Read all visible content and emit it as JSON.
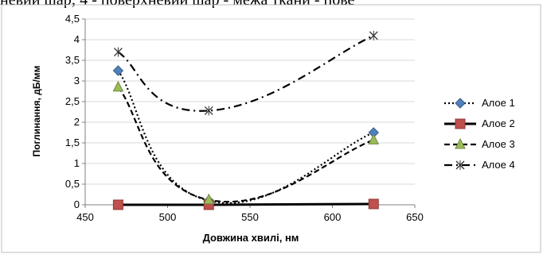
{
  "top_text": "невий шар; 4 - поверхневий шар - межа ткани - пове",
  "chart_data": {
    "type": "line",
    "xlabel": "Довжина хвилі, нм",
    "ylabel": "Поглинання, дБ/мм",
    "xlim": [
      450,
      650
    ],
    "ylim": [
      0,
      4.5
    ],
    "x_ticks": [
      "450",
      "500",
      "550",
      "600",
      "650"
    ],
    "y_ticks": [
      "0",
      "0,5",
      "1",
      "1,5",
      "2",
      "2,5",
      "3",
      "3,5",
      "4",
      "4,5"
    ],
    "grid": "horizontal",
    "legend_position": "right",
    "series": [
      {
        "name": "Алое 1",
        "x": [
          470,
          525,
          625
        ],
        "y": [
          3.25,
          0.1,
          1.75
        ],
        "color": "#4f81bd",
        "marker": "diamond",
        "dash": "dotted"
      },
      {
        "name": "Алое 2",
        "x": [
          470,
          525,
          625
        ],
        "y": [
          0.0,
          0.0,
          0.02
        ],
        "color": "#c0504d",
        "marker": "square",
        "dash": "solid"
      },
      {
        "name": "Алое 3",
        "x": [
          470,
          525,
          625
        ],
        "y": [
          2.85,
          0.12,
          1.57
        ],
        "color": "#9bbb59",
        "marker": "triangle",
        "dash": "dashed"
      },
      {
        "name": "Алое 4",
        "x": [
          470,
          525,
          625
        ],
        "y": [
          3.7,
          2.28,
          4.1
        ],
        "color": "#ffffff",
        "marker": "x",
        "dash": "dashdot"
      }
    ]
  }
}
